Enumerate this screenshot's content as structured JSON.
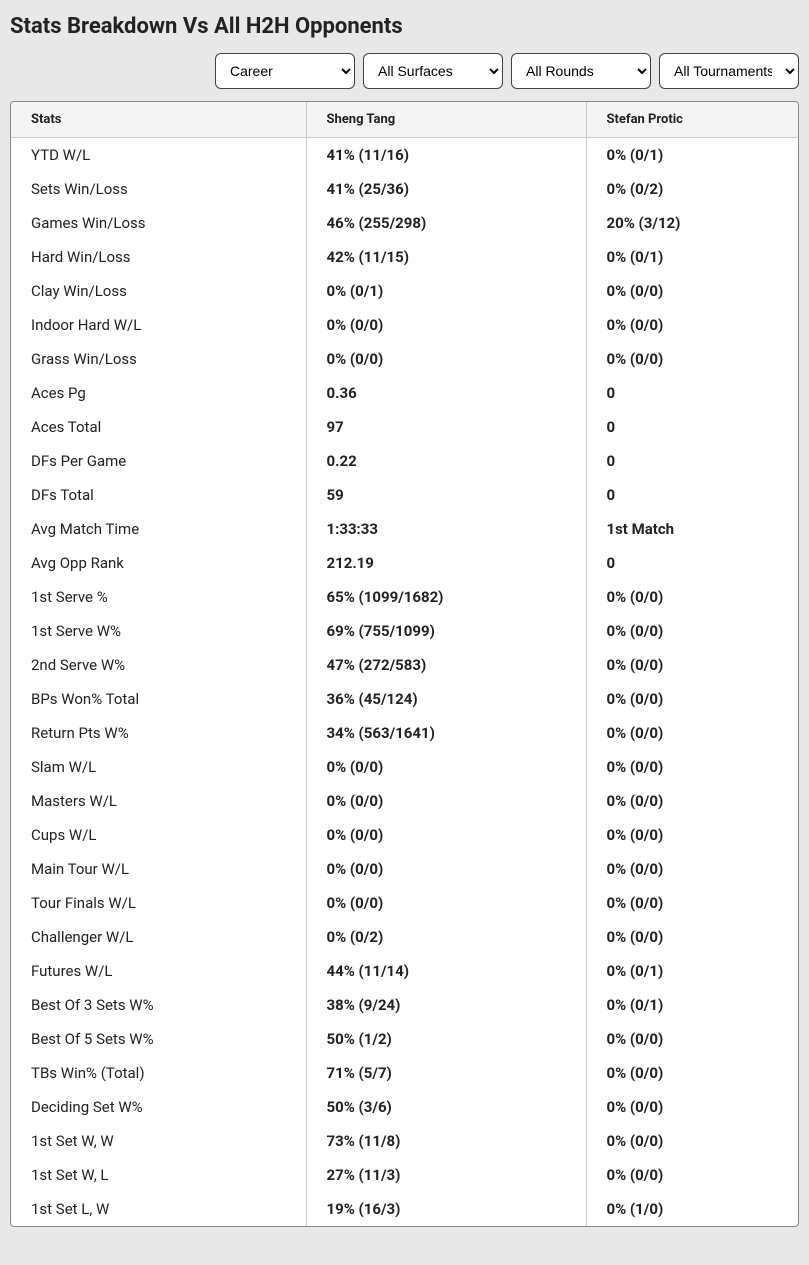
{
  "title": "Stats Breakdown Vs All H2H Opponents",
  "filters": {
    "period": "Career",
    "surface": "All Surfaces",
    "round": "All Rounds",
    "tournament": "All Tournaments"
  },
  "headers": {
    "stats": "Stats",
    "player1": "Sheng Tang",
    "player2": "Stefan Protic"
  },
  "rows": [
    {
      "label": "YTD W/L",
      "p1": "41% (11/16)",
      "p2": "0% (0/1)"
    },
    {
      "label": "Sets Win/Loss",
      "p1": "41% (25/36)",
      "p2": "0% (0/2)"
    },
    {
      "label": "Games Win/Loss",
      "p1": "46% (255/298)",
      "p2": "20% (3/12)"
    },
    {
      "label": "Hard Win/Loss",
      "p1": "42% (11/15)",
      "p2": "0% (0/1)"
    },
    {
      "label": "Clay Win/Loss",
      "p1": "0% (0/1)",
      "p2": "0% (0/0)"
    },
    {
      "label": "Indoor Hard W/L",
      "p1": "0% (0/0)",
      "p2": "0% (0/0)"
    },
    {
      "label": "Grass Win/Loss",
      "p1": "0% (0/0)",
      "p2": "0% (0/0)"
    },
    {
      "label": "Aces Pg",
      "p1": "0.36",
      "p2": "0"
    },
    {
      "label": "Aces Total",
      "p1": "97",
      "p2": "0"
    },
    {
      "label": "DFs Per Game",
      "p1": "0.22",
      "p2": "0"
    },
    {
      "label": "DFs Total",
      "p1": "59",
      "p2": "0"
    },
    {
      "label": "Avg Match Time",
      "p1": "1:33:33",
      "p2": "1st Match"
    },
    {
      "label": "Avg Opp Rank",
      "p1": "212.19",
      "p2": "0"
    },
    {
      "label": "1st Serve %",
      "p1": "65% (1099/1682)",
      "p2": "0% (0/0)"
    },
    {
      "label": "1st Serve W%",
      "p1": "69% (755/1099)",
      "p2": "0% (0/0)"
    },
    {
      "label": "2nd Serve W%",
      "p1": "47% (272/583)",
      "p2": "0% (0/0)"
    },
    {
      "label": "BPs Won% Total",
      "p1": "36% (45/124)",
      "p2": "0% (0/0)"
    },
    {
      "label": "Return Pts W%",
      "p1": "34% (563/1641)",
      "p2": "0% (0/0)"
    },
    {
      "label": "Slam W/L",
      "p1": "0% (0/0)",
      "p2": "0% (0/0)"
    },
    {
      "label": "Masters W/L",
      "p1": "0% (0/0)",
      "p2": "0% (0/0)"
    },
    {
      "label": "Cups W/L",
      "p1": "0% (0/0)",
      "p2": "0% (0/0)"
    },
    {
      "label": "Main Tour W/L",
      "p1": "0% (0/0)",
      "p2": "0% (0/0)"
    },
    {
      "label": "Tour Finals W/L",
      "p1": "0% (0/0)",
      "p2": "0% (0/0)"
    },
    {
      "label": "Challenger W/L",
      "p1": "0% (0/2)",
      "p2": "0% (0/0)"
    },
    {
      "label": "Futures W/L",
      "p1": "44% (11/14)",
      "p2": "0% (0/1)"
    },
    {
      "label": "Best Of 3 Sets W%",
      "p1": "38% (9/24)",
      "p2": "0% (0/1)"
    },
    {
      "label": "Best Of 5 Sets W%",
      "p1": "50% (1/2)",
      "p2": "0% (0/0)"
    },
    {
      "label": "TBs Win% (Total)",
      "p1": "71% (5/7)",
      "p2": "0% (0/0)"
    },
    {
      "label": "Deciding Set W%",
      "p1": "50% (3/6)",
      "p2": "0% (0/0)"
    },
    {
      "label": "1st Set W, W",
      "p1": "73% (11/8)",
      "p2": "0% (0/0)"
    },
    {
      "label": "1st Set W, L",
      "p1": "27% (11/3)",
      "p2": "0% (0/0)"
    },
    {
      "label": "1st Set L, W",
      "p1": "19% (16/3)",
      "p2": "0% (1/0)"
    }
  ]
}
